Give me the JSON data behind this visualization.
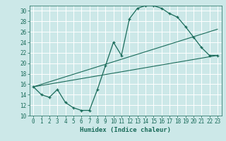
{
  "bg_color": "#cce8e8",
  "grid_color": "#ffffff",
  "line_color": "#1a6b5a",
  "xlabel": "Humidex (Indice chaleur)",
  "xlim": [
    -0.5,
    23.5
  ],
  "ylim": [
    10,
    31
  ],
  "xticks": [
    0,
    1,
    2,
    3,
    4,
    5,
    6,
    7,
    8,
    9,
    10,
    11,
    12,
    13,
    14,
    15,
    16,
    17,
    18,
    19,
    20,
    21,
    22,
    23
  ],
  "yticks": [
    10,
    12,
    14,
    16,
    18,
    20,
    22,
    24,
    26,
    28,
    30
  ],
  "line1_x": [
    0,
    1,
    2,
    3,
    4,
    5,
    6,
    7,
    8,
    9,
    10,
    11,
    12,
    13,
    14,
    15,
    16,
    17,
    18,
    19,
    20,
    21,
    22,
    23
  ],
  "line1_y": [
    15.5,
    14.0,
    13.5,
    15.0,
    12.5,
    11.5,
    11.0,
    11.0,
    15.0,
    19.5,
    24.0,
    21.5,
    28.5,
    30.5,
    31.0,
    31.0,
    30.5,
    29.5,
    28.8,
    27.0,
    25.0,
    23.0,
    21.5,
    21.5
  ],
  "line2_x": [
    0,
    23
  ],
  "line2_y": [
    15.5,
    26.5
  ],
  "line3_x": [
    0,
    23
  ],
  "line3_y": [
    15.5,
    21.5
  ],
  "tick_fontsize": 5.5,
  "xlabel_fontsize": 6.5
}
